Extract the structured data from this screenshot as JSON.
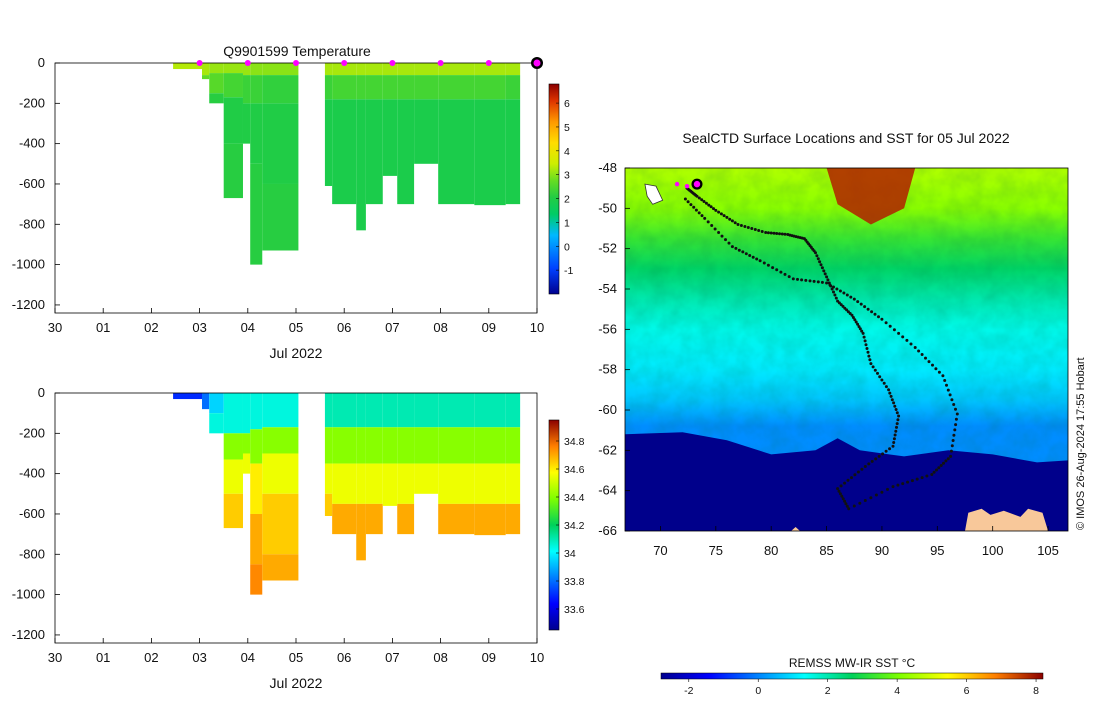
{
  "chart_data": [
    {
      "type": "heatmap",
      "title": "Q9901599  Temperature",
      "xlabel": "Jul 2022",
      "ylabel": "",
      "x_ticks": [
        "30",
        "01",
        "02",
        "03",
        "04",
        "05",
        "06",
        "07",
        "08",
        "09",
        "10"
      ],
      "y_ticks": [
        0,
        -200,
        -400,
        -600,
        -800,
        -1000,
        -1200
      ],
      "ylim": [
        -1240,
        0
      ],
      "xlim_days": [
        30,
        40
      ],
      "colorbar": {
        "min": -2,
        "max": 6.8,
        "ticks": [
          6,
          5,
          4,
          3,
          2,
          1,
          0,
          -1
        ]
      },
      "surfacing_markers_day": [
        33,
        34,
        35,
        36,
        37,
        38,
        39,
        40
      ],
      "profiles": [
        {
          "x0": 32.45,
          "x1": 33.05,
          "bottom": -30,
          "layers": [
            [
              0,
              3.3
            ]
          ]
        },
        {
          "x0": 33.05,
          "x1": 33.2,
          "bottom": -80,
          "layers": [
            [
              0,
              3.2
            ],
            [
              -60,
              2.7
            ]
          ]
        },
        {
          "x0": 33.2,
          "x1": 33.5,
          "bottom": -200,
          "layers": [
            [
              0,
              3.1
            ],
            [
              -50,
              2.6
            ],
            [
              -150,
              2.1
            ]
          ]
        },
        {
          "x0": 33.5,
          "x1": 33.9,
          "bottom": -670,
          "layers": [
            [
              0,
              3.1
            ],
            [
              -50,
              2.4
            ],
            [
              -170,
              2.0
            ],
            [
              -400,
              2.1
            ]
          ]
        },
        {
          "x0": 33.9,
          "x1": 34.05,
          "bottom": -400,
          "layers": [
            [
              0,
              3.1
            ],
            [
              -60,
              2.3
            ],
            [
              -200,
              2.0
            ]
          ]
        },
        {
          "x0": 34.05,
          "x1": 34.3,
          "bottom": -1000,
          "layers": [
            [
              0,
              3.0
            ],
            [
              -60,
              2.3
            ],
            [
              -200,
              2.0
            ],
            [
              -500,
              2.1
            ]
          ]
        },
        {
          "x0": 34.3,
          "x1": 35.05,
          "bottom": -930,
          "layers": [
            [
              0,
              3.0
            ],
            [
              -60,
              2.2
            ],
            [
              -200,
              2.0
            ],
            [
              -600,
              2.1
            ]
          ]
        },
        {
          "x0": 35.6,
          "x1": 35.75,
          "bottom": -610,
          "layers": [
            [
              0,
              3.2
            ],
            [
              -60,
              2.3
            ],
            [
              -180,
              1.9
            ]
          ]
        },
        {
          "x0": 35.75,
          "x1": 36.25,
          "bottom": -700,
          "layers": [
            [
              0,
              3.2
            ],
            [
              -60,
              2.4
            ],
            [
              -180,
              1.9
            ]
          ]
        },
        {
          "x0": 36.25,
          "x1": 36.45,
          "bottom": -830,
          "layers": [
            [
              0,
              3.2
            ],
            [
              -60,
              2.4
            ],
            [
              -180,
              1.9
            ]
          ]
        },
        {
          "x0": 36.45,
          "x1": 36.8,
          "bottom": -700,
          "layers": [
            [
              0,
              3.2
            ],
            [
              -60,
              2.4
            ],
            [
              -180,
              1.9
            ]
          ]
        },
        {
          "x0": 36.8,
          "x1": 37.1,
          "bottom": -560,
          "layers": [
            [
              0,
              3.2
            ],
            [
              -60,
              2.4
            ],
            [
              -180,
              1.9
            ]
          ]
        },
        {
          "x0": 37.1,
          "x1": 37.45,
          "bottom": -700,
          "layers": [
            [
              0,
              3.2
            ],
            [
              -60,
              2.4
            ],
            [
              -180,
              1.9
            ]
          ]
        },
        {
          "x0": 37.45,
          "x1": 37.95,
          "bottom": -500,
          "layers": [
            [
              0,
              3.2
            ],
            [
              -60,
              2.4
            ],
            [
              -180,
              1.9
            ]
          ]
        },
        {
          "x0": 37.95,
          "x1": 38.7,
          "bottom": -700,
          "layers": [
            [
              0,
              3.2
            ],
            [
              -60,
              2.4
            ],
            [
              -180,
              1.9
            ]
          ]
        },
        {
          "x0": 38.7,
          "x1": 39.35,
          "bottom": -705,
          "layers": [
            [
              0,
              3.2
            ],
            [
              -60,
              2.4
            ],
            [
              -180,
              1.9
            ]
          ]
        },
        {
          "x0": 39.35,
          "x1": 39.65,
          "bottom": -700,
          "layers": [
            [
              0,
              3.2
            ],
            [
              -60,
              2.3
            ],
            [
              -180,
              1.9
            ]
          ]
        }
      ]
    },
    {
      "type": "heatmap",
      "title": "",
      "xlabel": "Jul 2022",
      "ylabel": "",
      "x_ticks": [
        "30",
        "01",
        "02",
        "03",
        "04",
        "05",
        "06",
        "07",
        "08",
        "09",
        "10"
      ],
      "y_ticks": [
        0,
        -200,
        -400,
        -600,
        -800,
        -1000,
        -1200
      ],
      "ylim": [
        -1240,
        0
      ],
      "xlim_days": [
        30,
        40
      ],
      "colorbar": {
        "min": 33.45,
        "max": 34.95,
        "ticks": [
          34.8,
          34.6,
          34.4,
          34.2,
          34,
          33.8,
          33.6
        ]
      },
      "profiles": [
        {
          "x0": 32.45,
          "x1": 33.05,
          "bottom": -30,
          "layers": [
            [
              0,
              33.7
            ]
          ]
        },
        {
          "x0": 33.05,
          "x1": 33.2,
          "bottom": -80,
          "layers": [
            [
              0,
              33.8
            ]
          ]
        },
        {
          "x0": 33.2,
          "x1": 33.5,
          "bottom": -200,
          "layers": [
            [
              0,
              33.95
            ],
            [
              -100,
              34.05
            ]
          ]
        },
        {
          "x0": 33.5,
          "x1": 33.9,
          "bottom": -670,
          "layers": [
            [
              0,
              34.05
            ],
            [
              -200,
              34.4
            ],
            [
              -330,
              34.55
            ],
            [
              -500,
              34.65
            ]
          ]
        },
        {
          "x0": 33.9,
          "x1": 34.05,
          "bottom": -400,
          "layers": [
            [
              0,
              34.05
            ],
            [
              -200,
              34.4
            ],
            [
              -300,
              34.55
            ]
          ]
        },
        {
          "x0": 34.05,
          "x1": 34.3,
          "bottom": -1000,
          "layers": [
            [
              0,
              34.05
            ],
            [
              -180,
              34.4
            ],
            [
              -350,
              34.6
            ],
            [
              -600,
              34.7
            ],
            [
              -850,
              34.75
            ]
          ]
        },
        {
          "x0": 34.3,
          "x1": 35.05,
          "bottom": -930,
          "layers": [
            [
              0,
              34.05
            ],
            [
              -170,
              34.4
            ],
            [
              -300,
              34.55
            ],
            [
              -500,
              34.65
            ],
            [
              -800,
              34.7
            ]
          ]
        },
        {
          "x0": 35.6,
          "x1": 35.75,
          "bottom": -610,
          "layers": [
            [
              0,
              34.1
            ],
            [
              -170,
              34.4
            ],
            [
              -350,
              34.55
            ],
            [
              -500,
              34.65
            ]
          ]
        },
        {
          "x0": 35.75,
          "x1": 36.25,
          "bottom": -700,
          "layers": [
            [
              0,
              34.1
            ],
            [
              -170,
              34.4
            ],
            [
              -350,
              34.55
            ],
            [
              -550,
              34.7
            ]
          ]
        },
        {
          "x0": 36.25,
          "x1": 36.45,
          "bottom": -830,
          "layers": [
            [
              0,
              34.1
            ],
            [
              -170,
              34.4
            ],
            [
              -350,
              34.55
            ],
            [
              -550,
              34.7
            ]
          ]
        },
        {
          "x0": 36.45,
          "x1": 36.8,
          "bottom": -700,
          "layers": [
            [
              0,
              34.1
            ],
            [
              -170,
              34.4
            ],
            [
              -350,
              34.55
            ],
            [
              -550,
              34.7
            ]
          ]
        },
        {
          "x0": 36.8,
          "x1": 37.1,
          "bottom": -560,
          "layers": [
            [
              0,
              34.1
            ],
            [
              -170,
              34.4
            ],
            [
              -350,
              34.55
            ]
          ]
        },
        {
          "x0": 37.1,
          "x1": 37.45,
          "bottom": -700,
          "layers": [
            [
              0,
              34.1
            ],
            [
              -170,
              34.4
            ],
            [
              -350,
              34.55
            ],
            [
              -550,
              34.7
            ]
          ]
        },
        {
          "x0": 37.45,
          "x1": 37.95,
          "bottom": -500,
          "layers": [
            [
              0,
              34.1
            ],
            [
              -170,
              34.4
            ],
            [
              -350,
              34.55
            ]
          ]
        },
        {
          "x0": 37.95,
          "x1": 38.7,
          "bottom": -700,
          "layers": [
            [
              0,
              34.1
            ],
            [
              -170,
              34.4
            ],
            [
              -350,
              34.55
            ],
            [
              -550,
              34.7
            ]
          ]
        },
        {
          "x0": 38.7,
          "x1": 39.35,
          "bottom": -705,
          "layers": [
            [
              0,
              34.1
            ],
            [
              -170,
              34.4
            ],
            [
              -350,
              34.55
            ],
            [
              -550,
              34.7
            ]
          ]
        },
        {
          "x0": 39.35,
          "x1": 39.65,
          "bottom": -700,
          "layers": [
            [
              0,
              34.1
            ],
            [
              -170,
              34.4
            ],
            [
              -350,
              34.55
            ],
            [
              -550,
              34.7
            ]
          ]
        }
      ]
    },
    {
      "type": "heatmap",
      "title": "SealCTD Surface Locations and SST for 05 Jul 2022",
      "x_ticks": [
        70,
        75,
        80,
        85,
        90,
        95,
        100,
        105
      ],
      "y_ticks": [
        -48,
        -50,
        -52,
        -54,
        -56,
        -58,
        -60,
        -62,
        -64,
        -66
      ],
      "xlim": [
        66.8,
        106.8
      ],
      "ylim": [
        -66,
        -48
      ],
      "colorbar": {
        "label": "REMSS MW-IR SST °C",
        "min": -2.8,
        "max": 8.2,
        "ticks": [
          -2,
          0,
          2,
          4,
          6,
          8
        ]
      },
      "sst_bands": [
        {
          "lat_bottom": -60.8,
          "lat_top": -48,
          "stops": [
            [
              -60.8,
              0.1
            ],
            [
              -59.5,
              0.7
            ],
            [
              -58,
              1.1
            ],
            [
              -56,
              1.5
            ],
            [
              -54.5,
              2.0
            ],
            [
              -53,
              2.6
            ],
            [
              -51.5,
              3.3
            ],
            [
              -50,
              4.2
            ],
            [
              -48,
              4.6
            ]
          ]
        }
      ],
      "cold_shelf_boundary": [
        [
          66.8,
          -61.2
        ],
        [
          72,
          -61.1
        ],
        [
          76,
          -61.5
        ],
        [
          80,
          -62.2
        ],
        [
          84,
          -62.0
        ],
        [
          86,
          -61.4
        ],
        [
          88,
          -62.0
        ],
        [
          92,
          -62.3
        ],
        [
          96,
          -62.0
        ],
        [
          100,
          -62.2
        ],
        [
          104,
          -62.6
        ],
        [
          106.8,
          -62.5
        ]
      ],
      "warm_core": [
        [
          85,
          -48
        ],
        [
          93,
          -48
        ],
        [
          92,
          -50
        ],
        [
          89,
          -50.8
        ],
        [
          86,
          -49.8
        ]
      ],
      "track": [
        [
          72.4,
          -49.0
        ],
        [
          73.3,
          -49.4
        ],
        [
          75.0,
          -50.1
        ],
        [
          77.0,
          -50.8
        ],
        [
          79.5,
          -51.2
        ],
        [
          81.5,
          -51.3
        ],
        [
          83.0,
          -51.5
        ],
        [
          84.0,
          -52.2
        ],
        [
          85.0,
          -53.4
        ],
        [
          86.0,
          -54.6
        ],
        [
          87.3,
          -55.3
        ],
        [
          88.3,
          -56.2
        ],
        [
          89.0,
          -57.7
        ],
        [
          90.6,
          -59.0
        ],
        [
          91.5,
          -60.3
        ],
        [
          91.0,
          -61.8
        ],
        [
          88.5,
          -62.8
        ],
        [
          86.0,
          -63.9
        ],
        [
          87.0,
          -64.9
        ],
        [
          91.0,
          -63.8
        ],
        [
          94.5,
          -63.2
        ],
        [
          96.2,
          -62.3
        ],
        [
          96.8,
          -60.2
        ],
        [
          95.5,
          -58.3
        ],
        [
          93.0,
          -56.9
        ],
        [
          90.0,
          -55.5
        ],
        [
          87.5,
          -54.5
        ],
        [
          85.0,
          -53.7
        ],
        [
          82.0,
          -53.5
        ],
        [
          79.0,
          -52.6
        ],
        [
          76.5,
          -51.9
        ],
        [
          74.0,
          -50.5
        ],
        [
          72.0,
          -49.4
        ]
      ],
      "current_position": [
        73.3,
        -48.8
      ],
      "recent_positions": [
        [
          71.5,
          -48.8
        ],
        [
          72.4,
          -48.9
        ]
      ],
      "land_label": "",
      "credit": "© IMOS 26-Aug-2024 17:55 Hobart"
    }
  ],
  "colors": {
    "land": "#f8c89a",
    "track": "#111111",
    "marker": "#ff00ff"
  }
}
